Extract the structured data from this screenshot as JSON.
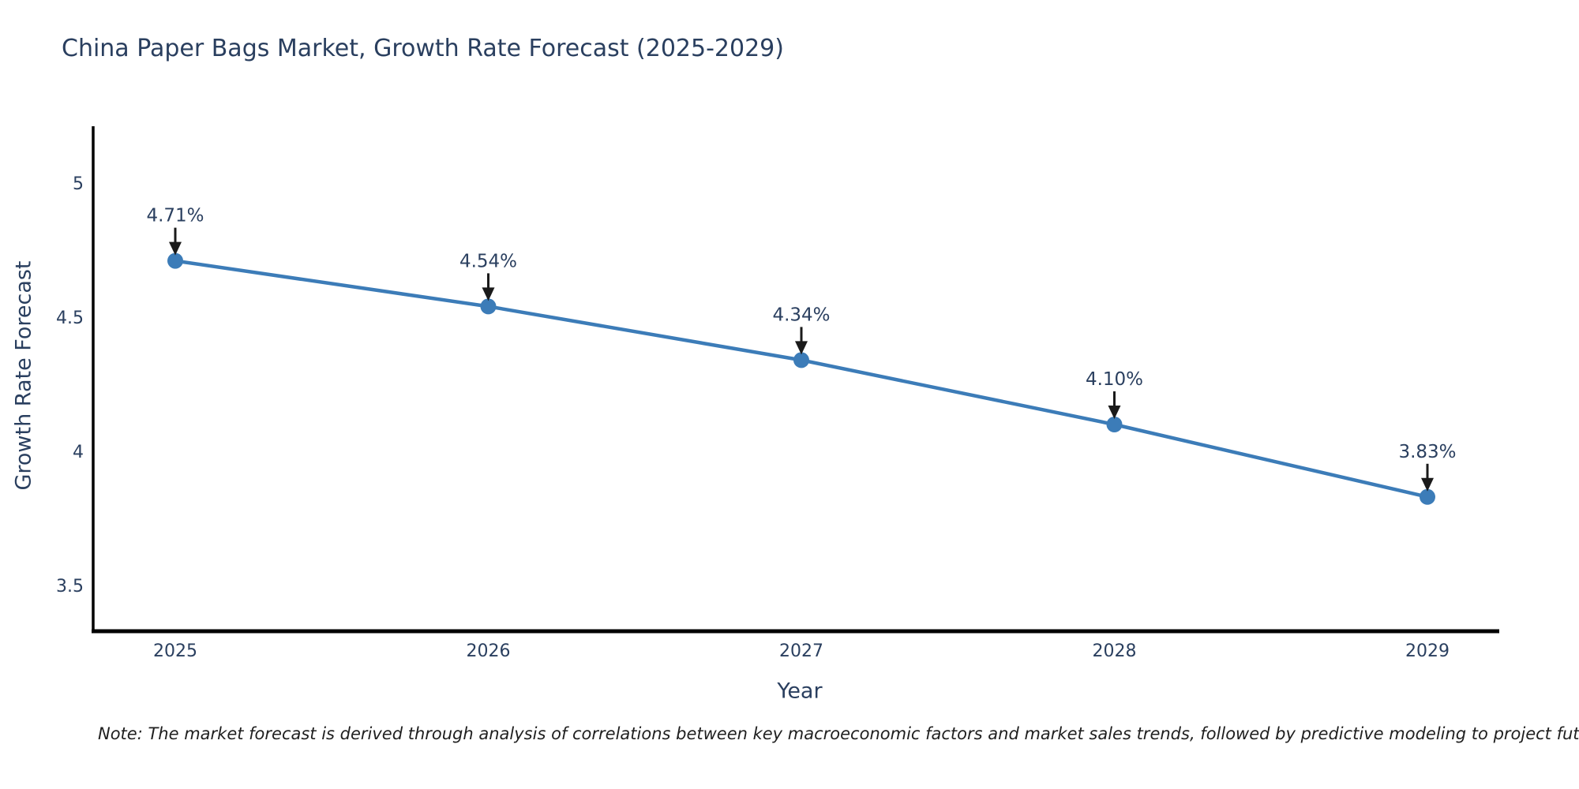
{
  "title": "China Paper Bags Market, Growth Rate Forecast (2025-2029)",
  "note": "Note: The market forecast is derived through analysis of correlations between key macroeconomic factors and market sales trends, followed by predictive modeling to project future sales",
  "chart_data": {
    "type": "line",
    "title": "China Paper Bags Market, Growth Rate Forecast (2025-2029)",
    "xlabel": "Year",
    "ylabel": "Growth Rate Forecast",
    "categories": [
      "2025",
      "2026",
      "2027",
      "2028",
      "2029"
    ],
    "values": [
      4.71,
      4.54,
      4.34,
      4.1,
      3.83
    ],
    "data_labels": [
      "4.71%",
      "4.54%",
      "4.34%",
      "4.10%",
      "3.83%"
    ],
    "y_ticks": [
      5,
      4.5,
      4,
      3.5
    ],
    "y_tick_labels": [
      "5",
      "4.5",
      "4",
      "3.5"
    ],
    "ylim": [
      3.32,
      5.21
    ],
    "grid": false,
    "legend": "none",
    "annotation_style": "value label with down arrow above each point",
    "colors": {
      "line": "#3c7cb8",
      "marker": "#3c7cb8",
      "axis": "#000000",
      "tick_text": "#2a3f5f",
      "annotation_text": "#2a3f5f",
      "annotation_arrow": "#1a1a1a",
      "background": "#ffffff"
    }
  }
}
